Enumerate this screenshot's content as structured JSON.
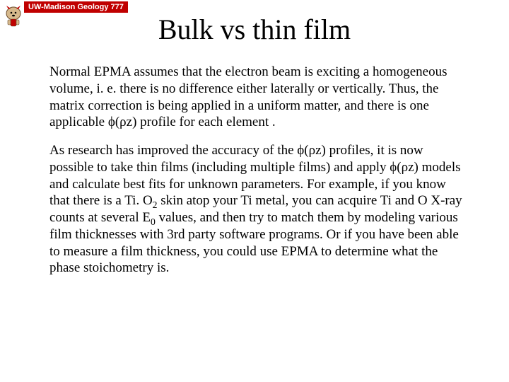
{
  "header": {
    "badge_text": "UW-Madison Geology 777",
    "badge_bg": "#c00000",
    "badge_fg": "#ffffff"
  },
  "title": "Bulk vs thin film",
  "title_fontsize": 40,
  "body_fontsize": 19,
  "background_color": "#ffffff",
  "text_color": "#000000",
  "mascot": {
    "name": "bucky-badger-icon",
    "colors": {
      "body": "#d6b98c",
      "accent": "#c00000",
      "outline": "#6b4a2a"
    }
  },
  "symbols": {
    "phi": "ϕ",
    "rho": "ρ",
    "phirz": "ϕ(ρz)"
  },
  "paragraphs": [
    {
      "segments": [
        {
          "t": "Normal EPMA assumes that the electron beam is exciting a homogeneous volume, i. e. there is no difference either laterally or vertically. Thus, the matrix correction is being applied in a uniform matter, and there is one applicable "
        },
        {
          "t": "ϕ(ρz)",
          "cls": "phirz"
        },
        {
          "t": " profile for each element ."
        }
      ]
    },
    {
      "segments": [
        {
          "t": "As research has improved the accuracy of the "
        },
        {
          "t": "ϕ(ρz)",
          "cls": "phirz"
        },
        {
          "t": " profiles, it is now possible to take thin films (including multiple films) and apply "
        },
        {
          "t": "ϕ(ρz)",
          "cls": "phirz"
        },
        {
          "t": " models and calculate best fits for unknown parameters. For example, if you know that there is a Ti. O"
        },
        {
          "t": "2",
          "sub": true
        },
        {
          "t": " skin atop your Ti metal, you can acquire Ti and O X-ray counts at several E"
        },
        {
          "t": "0",
          "sub": true
        },
        {
          "t": " values, and then try to match them by modeling various film thicknesses with 3rd party software programs. Or if you have been able to measure a film thickness, you could use EPMA to determine what the phase stoichometry is."
        }
      ]
    }
  ]
}
